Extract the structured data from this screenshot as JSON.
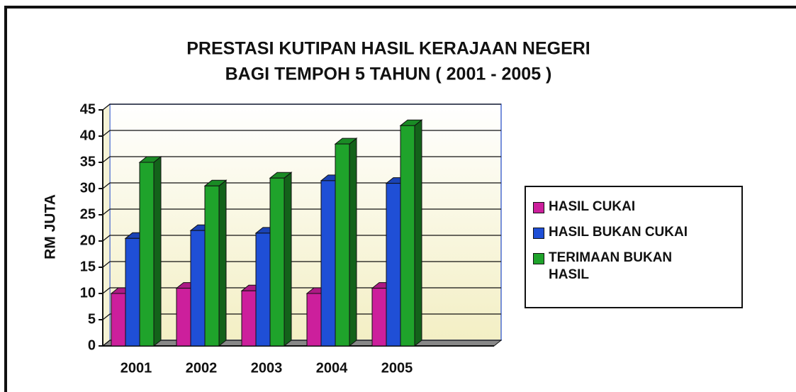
{
  "chart_data": {
    "type": "bar3d",
    "title": "PRESTASI KUTIPAN HASIL KERAJAAN NEGERI",
    "subtitle": "BAGI TEMPOH 5 TAHUN ( 2001 - 2005 )",
    "y_label": "RM JUTA",
    "categories": [
      "2001",
      "2002",
      "2003",
      "2004",
      "2005"
    ],
    "series": [
      {
        "name": "HASIL CUKAI",
        "color": "#cc1f9c",
        "values": [
          10,
          11,
          10.5,
          10,
          11
        ]
      },
      {
        "name": "HASIL BUKAN CUKAI",
        "color": "#1f4fd6",
        "values": [
          20.5,
          22,
          21.5,
          31.5,
          31
        ]
      },
      {
        "name": "TERIMAAN BUKAN HASIL",
        "color": "#1fa32b",
        "values": [
          35,
          30.5,
          32,
          38.5,
          42
        ]
      }
    ],
    "ylim": [
      0,
      45
    ],
    "yticks": [
      0,
      5,
      10,
      15,
      20,
      25,
      30,
      35,
      40,
      45
    ],
    "grid": true,
    "legend": "right"
  }
}
